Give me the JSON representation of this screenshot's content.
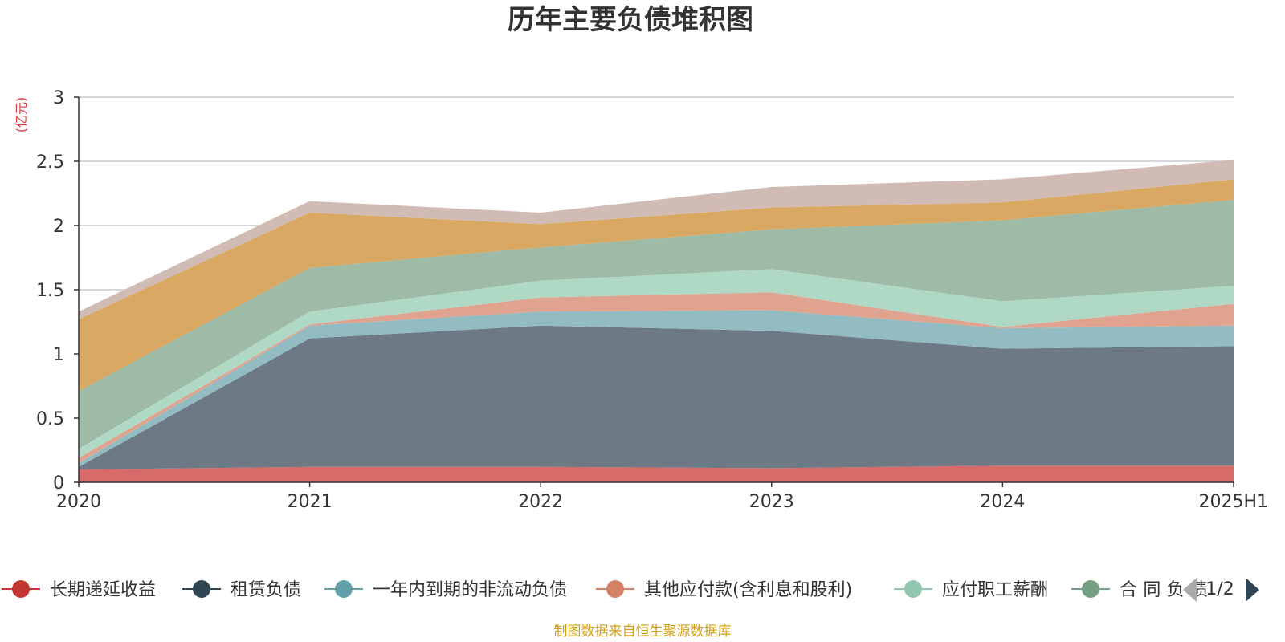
{
  "chart_data": {
    "type": "area",
    "stacked": true,
    "title": "历年主要负债堆积图",
    "unit_label": "(亿元)",
    "x": [
      "2020",
      "2021",
      "2022",
      "2023",
      "2024",
      "2025H1"
    ],
    "ylim": [
      0,
      3
    ],
    "yticks": [
      "0",
      "0.5",
      "1",
      "1.5",
      "2",
      "2.5",
      "3"
    ],
    "grid": true,
    "legend_position": "bottom",
    "legend_page": "1/2",
    "series": [
      {
        "name": "长期递延收益",
        "color": "#c23531",
        "fill": "#d66b69",
        "values": [
          0.1,
          0.12,
          0.12,
          0.11,
          0.13,
          0.13
        ]
      },
      {
        "name": "租赁负债",
        "color": "#2f4554",
        "fill": "#6d7a85",
        "values": [
          0.02,
          1.0,
          1.1,
          1.07,
          0.91,
          0.93
        ]
      },
      {
        "name": "一年内到期的非流动负债",
        "color": "#61a0a8",
        "fill": "#92bcc1",
        "values": [
          0.03,
          0.1,
          0.11,
          0.16,
          0.16,
          0.16
        ]
      },
      {
        "name": "其他应付款(含利息和股利)",
        "color": "#d48265",
        "fill": "#e0a390",
        "values": [
          0.04,
          0.01,
          0.11,
          0.14,
          0.01,
          0.17
        ]
      },
      {
        "name": "应付职工薪酬",
        "color": "#91c7ae",
        "fill": "#b0d9c5",
        "values": [
          0.07,
          0.1,
          0.13,
          0.18,
          0.2,
          0.14
        ]
      },
      {
        "name": "合同负债",
        "color": "#749f83",
        "fill": "#9dbba6",
        "values": [
          0.45,
          0.34,
          0.26,
          0.31,
          0.63,
          0.67
        ]
      },
      {
        "name": "",
        "color": "#ca8622",
        "fill": "#d9a963",
        "values": [
          0.56,
          0.43,
          0.18,
          0.17,
          0.14,
          0.16
        ]
      },
      {
        "name": "",
        "color": "#bda29a",
        "fill": "#d1bbb5",
        "values": [
          0.06,
          0.09,
          0.09,
          0.16,
          0.18,
          0.15
        ]
      }
    ],
    "source": "制图数据来自恒生聚源数据库"
  }
}
